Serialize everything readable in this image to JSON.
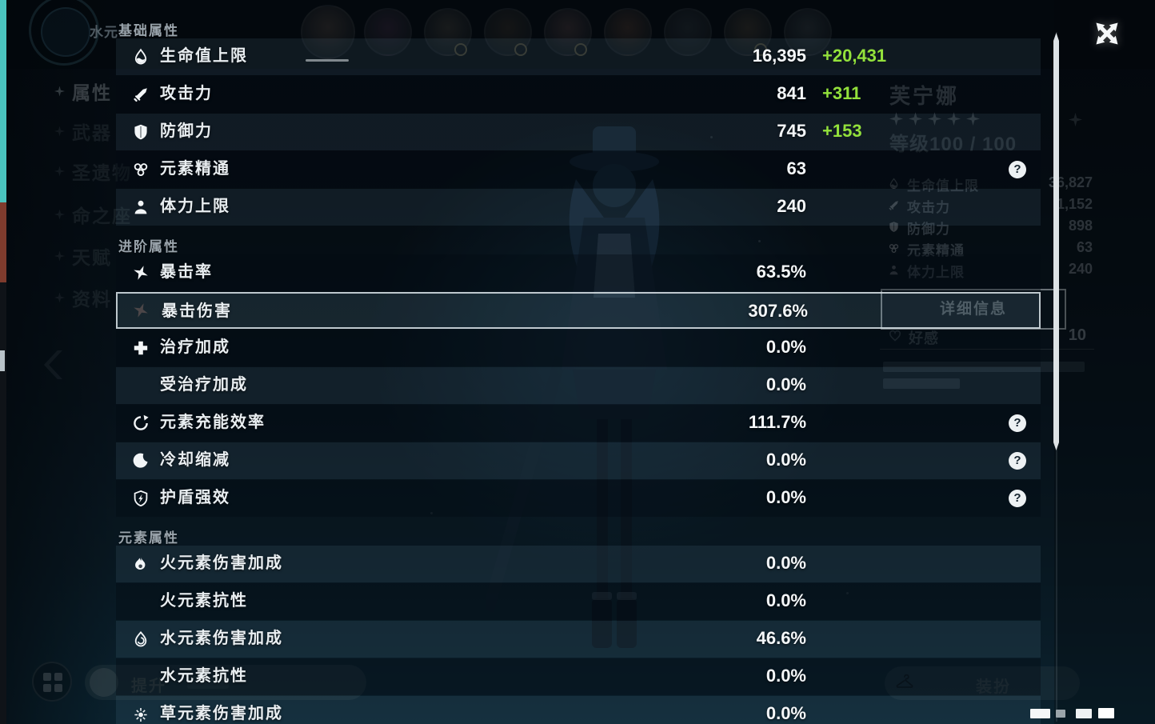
{
  "overlay": {
    "sections": [
      {
        "header": "基础属性",
        "rows": [
          {
            "icon": "hp-icon",
            "label": "生命值上限",
            "value": "16,395",
            "bonus": "+20,431"
          },
          {
            "icon": "atk-icon",
            "label": "攻击力",
            "value": "841",
            "bonus": "+311"
          },
          {
            "icon": "def-icon",
            "label": "防御力",
            "value": "745",
            "bonus": "+153"
          },
          {
            "icon": "elemental-mastery-icon",
            "label": "元素精通",
            "value": "63",
            "help": true
          },
          {
            "icon": "stamina-icon",
            "label": "体力上限",
            "value": "240"
          }
        ]
      },
      {
        "header": "进阶属性",
        "rows": [
          {
            "icon": "crit-rate-icon",
            "label": "暴击率",
            "value": "63.5%"
          },
          {
            "icon": "crit-dmg-icon",
            "label": "暴击伤害",
            "value": "307.6%",
            "highlight": true
          },
          {
            "icon": "healing-bonus-icon",
            "label": "治疗加成",
            "value": "0.0%"
          },
          {
            "icon": "none",
            "label": "受治疗加成",
            "value": "0.0%"
          },
          {
            "icon": "energy-recharge-icon",
            "label": "元素充能效率",
            "value": "111.7%",
            "help": true
          },
          {
            "icon": "cooldown-icon",
            "label": "冷却缩减",
            "value": "0.0%",
            "help": true
          },
          {
            "icon": "shield-strength-icon",
            "label": "护盾强效",
            "value": "0.0%",
            "help": true
          }
        ]
      },
      {
        "header": "元素属性",
        "rows": [
          {
            "icon": "pyro-icon",
            "label": "火元素伤害加成",
            "value": "0.0%"
          },
          {
            "icon": "none",
            "label": "火元素抗性",
            "value": "0.0%"
          },
          {
            "icon": "hydro-icon",
            "label": "水元素伤害加成",
            "value": "46.6%"
          },
          {
            "icon": "none",
            "label": "水元素抗性",
            "value": "0.0%"
          },
          {
            "icon": "dendro-icon",
            "label": "草元素伤害加成",
            "value": "0.0%"
          }
        ]
      }
    ]
  },
  "background": {
    "element_label": "水元",
    "nav_items": [
      "属性",
      "武器",
      "圣遗物",
      "命之座",
      "天赋",
      "资料"
    ],
    "character": {
      "name": "芙宁娜",
      "stars": 5,
      "level_label": "等级100 / 100"
    },
    "stats": [
      {
        "icon": "hp-icon",
        "label": "生命值上限",
        "value": "36,827"
      },
      {
        "icon": "atk-icon",
        "label": "攻击力",
        "value": "1,152"
      },
      {
        "icon": "def-icon",
        "label": "防御力",
        "value": "898"
      },
      {
        "icon": "elemental-mastery-icon",
        "label": "元素精通",
        "value": "63"
      },
      {
        "icon": "stamina-icon",
        "label": "体力上限",
        "value": "240"
      }
    ],
    "details_button_label": "详细信息",
    "friendship_label": "好感",
    "friendship_value": "10",
    "enhance_button_label": "提升",
    "dress_button_label": "装扮"
  },
  "colors": {
    "bonus_green": "#93e13b",
    "accent_white": "#f2f5f7"
  }
}
